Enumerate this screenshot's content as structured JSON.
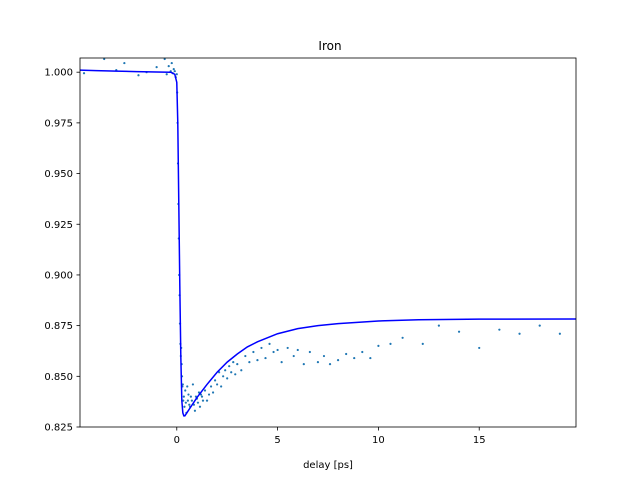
{
  "chart_data": {
    "type": "scatter",
    "title": "Iron",
    "xlabel": "delay [ps]",
    "ylabel": "",
    "xlim": [
      -4.8,
      19.8
    ],
    "ylim": [
      0.825,
      1.007
    ],
    "xticks": [
      0,
      5,
      10,
      15
    ],
    "xtick_labels": [
      "0",
      "5",
      "10",
      "15"
    ],
    "yticks": [
      0.825,
      0.85,
      0.875,
      0.9,
      0.925,
      0.95,
      0.975,
      1.0
    ],
    "ytick_labels": [
      "0.825",
      "0.850",
      "0.875",
      "0.900",
      "0.925",
      "0.950",
      "0.975",
      "1.000"
    ],
    "grid": false,
    "legend": "none",
    "colors": {
      "points": "#1f77b4",
      "fit": "#0000ff"
    },
    "series": [
      {
        "kind": "scatter",
        "points": [
          [
            -4.6,
            0.9995
          ],
          [
            -3.6,
            1.0065
          ],
          [
            -3.0,
            1.001
          ],
          [
            -2.6,
            1.0045
          ],
          [
            -1.9,
            0.9985
          ],
          [
            -1.5,
            1.0
          ],
          [
            -1.0,
            1.0025
          ],
          [
            -0.6,
            1.0065
          ],
          [
            -0.5,
            0.999
          ],
          [
            -0.4,
            1.003
          ],
          [
            -0.3,
            1.0005
          ],
          [
            -0.25,
            1.0045
          ],
          [
            -0.2,
            0.9995
          ],
          [
            -0.15,
            1.0015
          ],
          [
            -0.1,
            1.0005
          ],
          [
            -0.05,
            0.9975
          ],
          [
            0.0,
            0.999
          ],
          [
            0.02,
            0.99
          ],
          [
            0.04,
            0.975
          ],
          [
            0.06,
            0.955
          ],
          [
            0.08,
            0.935
          ],
          [
            0.1,
            0.918
          ],
          [
            0.12,
            0.9
          ],
          [
            0.14,
            0.89
          ],
          [
            0.16,
            0.876
          ],
          [
            0.18,
            0.866
          ],
          [
            0.2,
            0.86
          ],
          [
            0.22,
            0.864
          ],
          [
            0.24,
            0.856
          ],
          [
            0.26,
            0.85
          ],
          [
            0.28,
            0.845
          ],
          [
            0.3,
            0.846
          ],
          [
            0.32,
            0.838
          ],
          [
            0.35,
            0.84
          ],
          [
            0.38,
            0.835
          ],
          [
            0.42,
            0.843
          ],
          [
            0.45,
            0.837
          ],
          [
            0.48,
            0.832
          ],
          [
            0.52,
            0.845
          ],
          [
            0.55,
            0.838
          ],
          [
            0.58,
            0.841
          ],
          [
            0.62,
            0.836
          ],
          [
            0.66,
            0.835
          ],
          [
            0.7,
            0.84
          ],
          [
            0.75,
            0.838
          ],
          [
            0.8,
            0.846
          ],
          [
            0.85,
            0.836
          ],
          [
            0.9,
            0.833
          ],
          [
            0.95,
            0.84
          ],
          [
            1.0,
            0.839
          ],
          [
            1.05,
            0.837
          ],
          [
            1.1,
            0.842
          ],
          [
            1.15,
            0.835
          ],
          [
            1.2,
            0.841
          ],
          [
            1.25,
            0.84
          ],
          [
            1.3,
            0.838
          ],
          [
            1.4,
            0.843
          ],
          [
            1.5,
            0.838
          ],
          [
            1.6,
            0.841
          ],
          [
            1.7,
            0.845
          ],
          [
            1.8,
            0.842
          ],
          [
            1.9,
            0.848
          ],
          [
            2.0,
            0.846
          ],
          [
            2.1,
            0.852
          ],
          [
            2.2,
            0.845
          ],
          [
            2.3,
            0.85
          ],
          [
            2.4,
            0.853
          ],
          [
            2.5,
            0.849
          ],
          [
            2.6,
            0.855
          ],
          [
            2.7,
            0.852
          ],
          [
            2.8,
            0.857
          ],
          [
            2.9,
            0.851
          ],
          [
            3.0,
            0.856
          ],
          [
            3.2,
            0.853
          ],
          [
            3.4,
            0.86
          ],
          [
            3.6,
            0.857
          ],
          [
            3.8,
            0.862
          ],
          [
            4.0,
            0.858
          ],
          [
            4.2,
            0.864
          ],
          [
            4.4,
            0.859
          ],
          [
            4.6,
            0.866
          ],
          [
            4.8,
            0.862
          ],
          [
            5.0,
            0.863
          ],
          [
            5.2,
            0.857
          ],
          [
            5.5,
            0.864
          ],
          [
            5.8,
            0.86
          ],
          [
            6.0,
            0.863
          ],
          [
            6.3,
            0.856
          ],
          [
            6.6,
            0.862
          ],
          [
            7.0,
            0.857
          ],
          [
            7.3,
            0.86
          ],
          [
            7.6,
            0.856
          ],
          [
            8.0,
            0.858
          ],
          [
            8.4,
            0.861
          ],
          [
            8.8,
            0.859
          ],
          [
            9.2,
            0.862
          ],
          [
            9.6,
            0.859
          ],
          [
            10.0,
            0.865
          ],
          [
            10.6,
            0.866
          ],
          [
            11.2,
            0.869
          ],
          [
            12.2,
            0.866
          ],
          [
            13.0,
            0.875
          ],
          [
            14.0,
            0.872
          ],
          [
            15.0,
            0.864
          ],
          [
            16.0,
            0.873
          ],
          [
            17.0,
            0.871
          ],
          [
            18.0,
            0.875
          ],
          [
            19.0,
            0.871
          ]
        ]
      },
      {
        "kind": "line",
        "points": [
          [
            -4.8,
            1.001
          ],
          [
            -4.0,
            1.0008
          ],
          [
            -3.0,
            1.0005
          ],
          [
            -2.0,
            1.0003
          ],
          [
            -1.0,
            1.0001
          ],
          [
            -0.3,
            1.0
          ],
          [
            -0.1,
            0.999
          ],
          [
            0.0,
            0.995
          ],
          [
            0.05,
            0.975
          ],
          [
            0.1,
            0.935
          ],
          [
            0.15,
            0.895
          ],
          [
            0.2,
            0.86
          ],
          [
            0.25,
            0.838
          ],
          [
            0.3,
            0.832
          ],
          [
            0.35,
            0.8305
          ],
          [
            0.4,
            0.8305
          ],
          [
            0.5,
            0.832
          ],
          [
            0.7,
            0.835
          ],
          [
            1.0,
            0.8395
          ],
          [
            1.5,
            0.846
          ],
          [
            2.0,
            0.852
          ],
          [
            2.5,
            0.857
          ],
          [
            3.0,
            0.861
          ],
          [
            3.5,
            0.8645
          ],
          [
            4.0,
            0.867
          ],
          [
            5.0,
            0.871
          ],
          [
            6.0,
            0.8735
          ],
          [
            7.0,
            0.875
          ],
          [
            8.0,
            0.876
          ],
          [
            10.0,
            0.8773
          ],
          [
            12.0,
            0.8779
          ],
          [
            15.0,
            0.8782
          ],
          [
            19.8,
            0.8783
          ]
        ]
      }
    ]
  }
}
